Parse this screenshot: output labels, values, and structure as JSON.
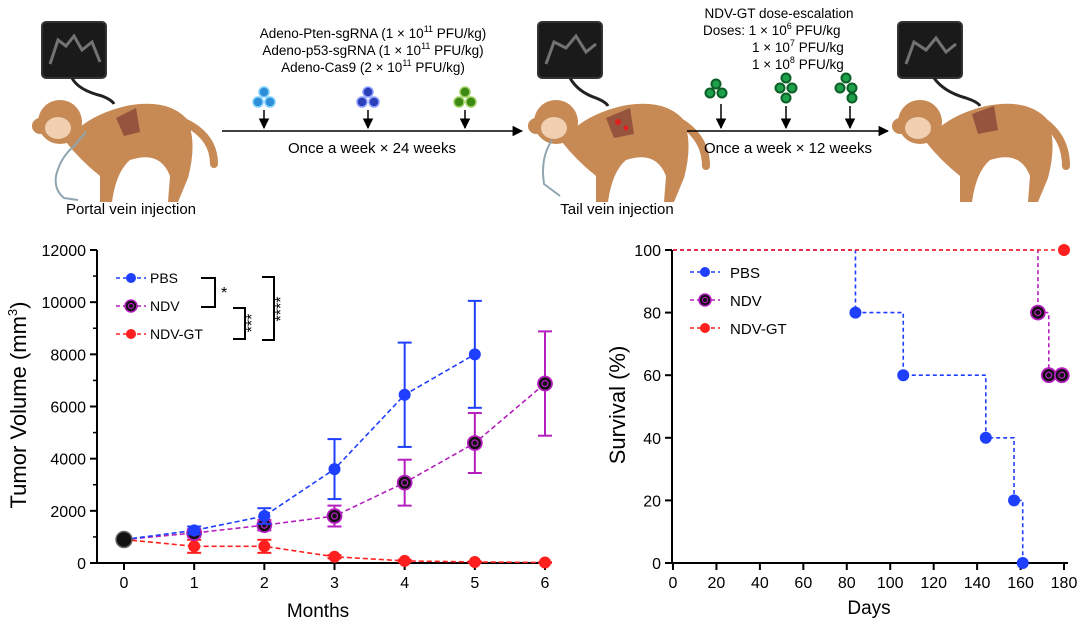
{
  "schematic": {
    "phase1_agents": [
      {
        "name": "Adeno-Pten-sgRNA",
        "dose": "(1 × 10",
        "exp": "11",
        "unit": " PFU/kg)"
      },
      {
        "name": "Adeno-p53-sgRNA",
        "dose": "(1 × 10",
        "exp": "11",
        "unit": " PFU/kg)"
      },
      {
        "name": "Adeno-Cas9",
        "dose": "(2 × 10",
        "exp": "11",
        "unit": " PFU/kg)"
      }
    ],
    "phase1_schedule": "Once a week × 24 weeks",
    "phase1_route": "Portal vein injection",
    "phase2_title": "NDV-GT dose-escalation",
    "phase2_doses_label": "Doses:",
    "phase2_doses": [
      {
        "base": "1 × 10",
        "exp": "6",
        "unit": " PFU/kg"
      },
      {
        "base": "1 × 10",
        "exp": "7",
        "unit": " PFU/kg"
      },
      {
        "base": "1 × 10",
        "exp": "8",
        "unit": " PFU/kg"
      }
    ],
    "phase2_schedule": "Once a week × 12 weeks",
    "phase2_route": "Tail vein injection",
    "colors": {
      "monkey": "#c78a55",
      "monkey_dark": "#9c6234",
      "virus_cyan": "#2f8fd6",
      "virus_blue": "#2a3fb8",
      "virus_green": "#3c8a14",
      "virus_ndv": "#1fa04a"
    }
  },
  "chart_data": [
    {
      "type": "line",
      "title": "",
      "xlabel": "Months",
      "ylabel": "Tumor Volume (mm",
      "ylabel_sup": "3",
      "ylabel_close": ")",
      "xlim": [
        0,
        6
      ],
      "ylim": [
        0,
        12000
      ],
      "xticks": [
        0,
        1,
        2,
        3,
        4,
        5,
        6
      ],
      "yticks": [
        0,
        2000,
        4000,
        6000,
        8000,
        10000,
        12000
      ],
      "legend_position": "top-left",
      "series": [
        {
          "name": "PBS",
          "color": "#1f3fff",
          "marker": "filled",
          "x": [
            0,
            1,
            2,
            3,
            4,
            5
          ],
          "y": [
            900,
            1250,
            1800,
            3600,
            6450,
            8000
          ],
          "err": [
            100,
            150,
            300,
            1150,
            2000,
            2050
          ]
        },
        {
          "name": "NDV",
          "color": "#b41fbe",
          "marker": "ring",
          "x": [
            0,
            1,
            2,
            3,
            4,
            5,
            6
          ],
          "y": [
            900,
            1150,
            1450,
            1800,
            3080,
            4600,
            6880
          ],
          "err": [
            100,
            150,
            200,
            400,
            880,
            1150,
            2000
          ]
        },
        {
          "name": "NDV-GT",
          "color": "#ff1f1f",
          "marker": "filled",
          "x": [
            0,
            1,
            2,
            3,
            4,
            5,
            6
          ],
          "y": [
            900,
            640,
            640,
            240,
            80,
            40,
            20
          ],
          "err": [
            100,
            250,
            250,
            60,
            40,
            20,
            10
          ]
        }
      ],
      "significance": [
        {
          "between": "PBS vs NDV",
          "label": "*"
        },
        {
          "between": "NDV vs NDV-GT",
          "label": "***"
        },
        {
          "between": "PBS vs NDV-GT",
          "label": "****"
        }
      ]
    },
    {
      "type": "line",
      "title": "",
      "xlabel": "Days",
      "ylabel": "Survival (%)",
      "xlim": [
        0,
        180
      ],
      "ylim": [
        0,
        100
      ],
      "xticks": [
        0,
        20,
        40,
        60,
        80,
        100,
        120,
        140,
        160,
        180
      ],
      "yticks": [
        0,
        20,
        40,
        60,
        80,
        100
      ],
      "legend_position": "top-left",
      "series": [
        {
          "name": "PBS",
          "color": "#1f3fff",
          "marker": "filled",
          "steps": [
            [
              0,
              100
            ],
            [
              84,
              100
            ],
            [
              84,
              80
            ],
            [
              106,
              80
            ],
            [
              106,
              60
            ],
            [
              144,
              60
            ],
            [
              144,
              40
            ],
            [
              157,
              40
            ],
            [
              157,
              20
            ],
            [
              161,
              20
            ],
            [
              161,
              0
            ]
          ],
          "points": [
            [
              84,
              80
            ],
            [
              106,
              60
            ],
            [
              144,
              40
            ],
            [
              157,
              20
            ],
            [
              161,
              0
            ]
          ]
        },
        {
          "name": "NDV",
          "color": "#b41fbe",
          "marker": "ring",
          "steps": [
            [
              0,
              100
            ],
            [
              168,
              100
            ],
            [
              168,
              80
            ],
            [
              173,
              80
            ],
            [
              173,
              60
            ],
            [
              180,
              60
            ]
          ],
          "points": [
            [
              168,
              80
            ],
            [
              173,
              60
            ],
            [
              179,
              60
            ]
          ]
        },
        {
          "name": "NDV-GT",
          "color": "#ff1f1f",
          "marker": "filled",
          "steps": [
            [
              0,
              100
            ],
            [
              180,
              100
            ]
          ],
          "points": [
            [
              180,
              100
            ]
          ]
        }
      ]
    }
  ]
}
